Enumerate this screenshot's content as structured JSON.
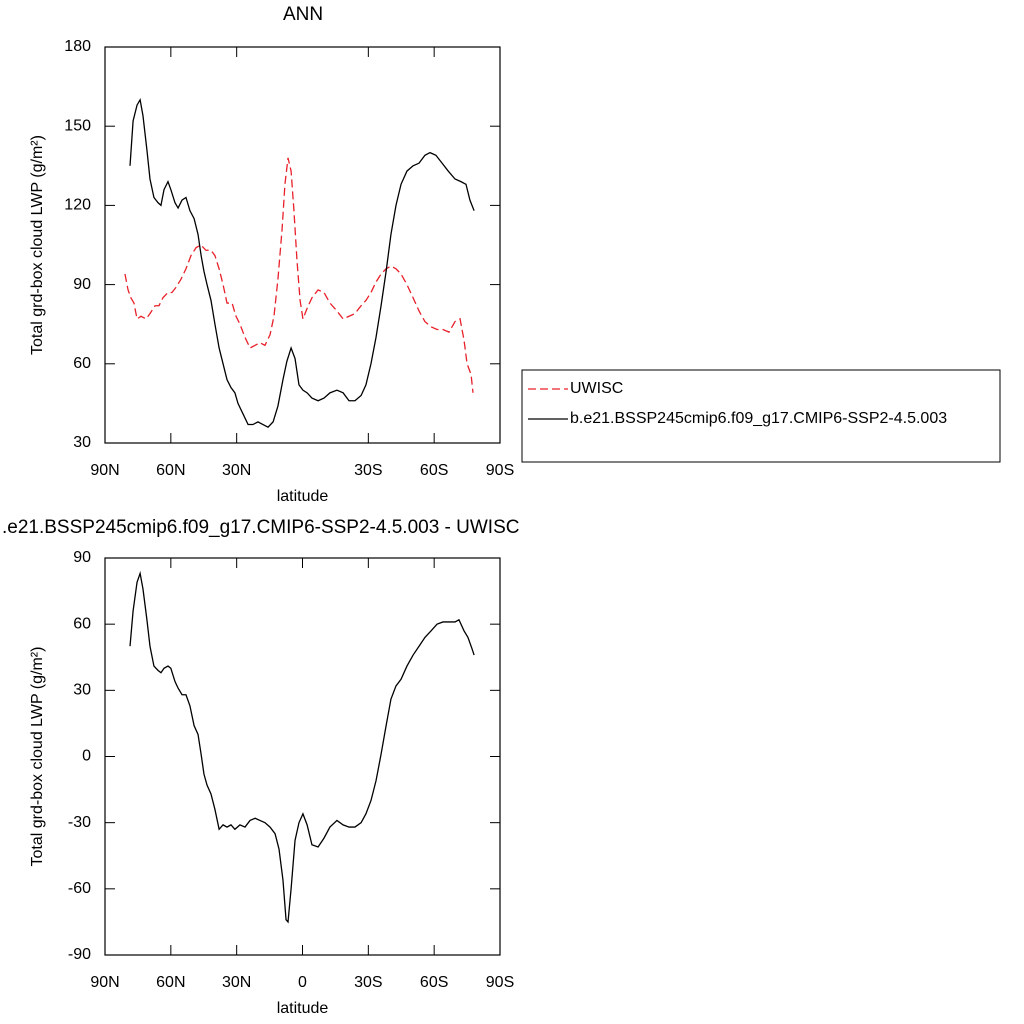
{
  "chart_data": [
    {
      "type": "line",
      "title": "ANN",
      "xlabel": "latitude",
      "ylabel": "Total grd-box cloud LWP (g/m²)",
      "xlim": [
        90,
        -90
      ],
      "ylim": [
        30,
        180
      ],
      "xticks": [
        {
          "value": 90,
          "label": "90N"
        },
        {
          "value": 60,
          "label": "60N"
        },
        {
          "value": 30,
          "label": "30N"
        },
        {
          "value": -30,
          "label": "30S"
        },
        {
          "value": -60,
          "label": "60S"
        },
        {
          "value": -90,
          "label": "90S"
        }
      ],
      "yticks": [
        30,
        60,
        90,
        120,
        150,
        180
      ],
      "legend": "right",
      "series": [
        {
          "name": "UWISC",
          "color": "#e8202a",
          "dashed": true,
          "x": [
            80.9,
            79.5,
            78.2,
            76.8,
            75.4,
            73.6,
            71.3,
            69.5,
            67.2,
            65.4,
            63.6,
            61.3,
            59.5,
            57.6,
            55.4,
            53.1,
            50.8,
            48.5,
            46.3,
            44,
            41.7,
            39.9,
            38,
            36.2,
            34.4,
            32.1,
            30.3,
            28.5,
            26.2,
            23.9,
            21.6,
            19.4,
            17.1,
            14.8,
            13,
            11.2,
            9.3,
            8,
            6.6,
            5.2,
            3.9,
            2.5,
            1.1,
            -0.2,
            -2.1,
            -4.3,
            -7.1,
            -9.8,
            -12.5,
            -15.7,
            -18.5,
            -21.2,
            -23.9,
            -26.7,
            -28.9,
            -31.2,
            -33.5,
            -35.8,
            -38.1,
            -40.3,
            -42.6,
            -44.9,
            -47.6,
            -50.4,
            -53.1,
            -55.8,
            -58.6,
            -61.3,
            -64,
            -66.8,
            -69.5,
            -71.8,
            -73.6,
            -75,
            -76.8,
            -77.7
          ],
          "values": [
            94,
            88,
            85,
            83,
            77,
            78,
            77,
            79,
            82,
            82,
            85,
            87,
            87,
            89,
            92,
            96,
            101,
            104,
            105,
            103,
            103,
            101,
            96,
            90,
            83,
            83,
            78,
            75,
            70,
            66,
            67,
            68,
            67,
            71,
            78,
            92,
            111,
            128,
            138,
            133,
            118,
            99,
            84,
            77,
            81,
            85,
            88,
            87,
            83,
            80,
            77,
            78,
            79,
            82,
            84,
            87,
            91,
            94,
            96,
            97,
            96,
            94,
            90,
            85,
            80,
            76,
            74,
            73,
            73,
            72,
            76,
            77,
            69,
            60,
            56,
            49
          ]
        },
        {
          "name": "b.e21.BSSP245cmip6.f09_g17.CMIP6-SSP2-4.5.003",
          "color": "#000000",
          "dashed": false,
          "x": [
            78.6,
            77.2,
            75.4,
            74,
            72.7,
            70.9,
            69.5,
            67.7,
            65.8,
            64.5,
            63.1,
            61.3,
            60,
            58.1,
            56.7,
            54.9,
            53.1,
            51.3,
            49.4,
            47.6,
            46.2,
            44.9,
            43.5,
            41.7,
            39.9,
            38,
            36.2,
            34.4,
            32.6,
            30.8,
            29.4,
            27.1,
            24.8,
            22.6,
            20.3,
            18,
            15.7,
            13.4,
            11.2,
            8.9,
            7.1,
            5.2,
            3.4,
            1.6,
            -0.2,
            -2.1,
            -4.3,
            -7.1,
            -9.8,
            -12.5,
            -15.7,
            -18.5,
            -21.2,
            -23.9,
            -26.7,
            -28.9,
            -31.2,
            -33.5,
            -35.8,
            -38.1,
            -40.3,
            -42.6,
            -44.9,
            -47.6,
            -50.4,
            -53.1,
            -55.8,
            -58.1,
            -60.8,
            -63.6,
            -66.4,
            -69.5,
            -72.2,
            -74.5,
            -76.3,
            -78.2
          ],
          "values": [
            135,
            152,
            158,
            160,
            154,
            141,
            130,
            123,
            121,
            120,
            126,
            129,
            126,
            121,
            119,
            122,
            123,
            118,
            115,
            109,
            101,
            95,
            90,
            84,
            75,
            66,
            60,
            54,
            51,
            49,
            45,
            41,
            37,
            37,
            38,
            37,
            36,
            38,
            44,
            54,
            61,
            66,
            62,
            52,
            50,
            49,
            47,
            46,
            47,
            49,
            50,
            49,
            46,
            46,
            48,
            52,
            60,
            70,
            82,
            95,
            109,
            120,
            128,
            133,
            135,
            136,
            139,
            140,
            139,
            136,
            133,
            130,
            129,
            128,
            122,
            118
          ]
        }
      ]
    },
    {
      "type": "line",
      "title": ".e21.BSSP245cmip6.f09_g17.CMIP6-SSP2-4.5.003 - UWISC",
      "xlabel": "latitude",
      "ylabel": "Total grd-box cloud LWP (g/m²)",
      "xlim": [
        90,
        -90
      ],
      "ylim": [
        -90,
        90
      ],
      "xticks": [
        {
          "value": 90,
          "label": "90N"
        },
        {
          "value": 60,
          "label": "60N"
        },
        {
          "value": 30,
          "label": "30N"
        },
        0,
        {
          "value": -30,
          "label": "30S"
        },
        {
          "value": -60,
          "label": "60S"
        },
        {
          "value": -90,
          "label": "90S"
        }
      ],
      "yticks": [
        -90,
        -60,
        -30,
        0,
        30,
        60,
        90
      ],
      "series": [
        {
          "color": "#000000",
          "dashed": false,
          "x": [
            78.6,
            77.2,
            75.4,
            74,
            72.7,
            70.9,
            69.5,
            67.7,
            65.8,
            64.5,
            63.1,
            61.3,
            60,
            58.1,
            56.7,
            54.9,
            53.1,
            51.3,
            49.4,
            47.6,
            46.2,
            44.9,
            43.5,
            41.7,
            39.9,
            38,
            36.2,
            34.4,
            32.6,
            30.8,
            28.5,
            26.2,
            23.9,
            21.6,
            19.4,
            17.1,
            14.8,
            12.5,
            10.7,
            8.9,
            7.5,
            6.6,
            5.2,
            3.4,
            1.6,
            -0.2,
            -2.1,
            -4.3,
            -7.1,
            -9.8,
            -12.5,
            -15.7,
            -18.5,
            -21.2,
            -23.9,
            -26.7,
            -28.9,
            -31.2,
            -33.5,
            -35.8,
            -38.1,
            -40.3,
            -42.6,
            -44.9,
            -47.6,
            -50.4,
            -53.1,
            -55.8,
            -58.6,
            -61.3,
            -64,
            -66.8,
            -69.5,
            -71.3,
            -73.6,
            -75.4,
            -77.2,
            -78.2
          ],
          "values": [
            50,
            66,
            79,
            83,
            76,
            62,
            50,
            41,
            39,
            38,
            40,
            41,
            40,
            34,
            31,
            28,
            28,
            23,
            14,
            10,
            1,
            -8,
            -13,
            -17,
            -24,
            -33,
            -31,
            -32,
            -31,
            -33,
            -31,
            -32,
            -29,
            -28,
            -29,
            -30,
            -32,
            -35,
            -42,
            -56,
            -74,
            -75,
            -60,
            -38,
            -30,
            -26,
            -31,
            -40,
            -41,
            -37,
            -32,
            -29,
            -31,
            -32,
            -32,
            -30,
            -26,
            -20,
            -11,
            1,
            14,
            26,
            32,
            35,
            41,
            46,
            50,
            54,
            57,
            60,
            61,
            61,
            61,
            62,
            57,
            54,
            49,
            46
          ]
        }
      ]
    }
  ]
}
